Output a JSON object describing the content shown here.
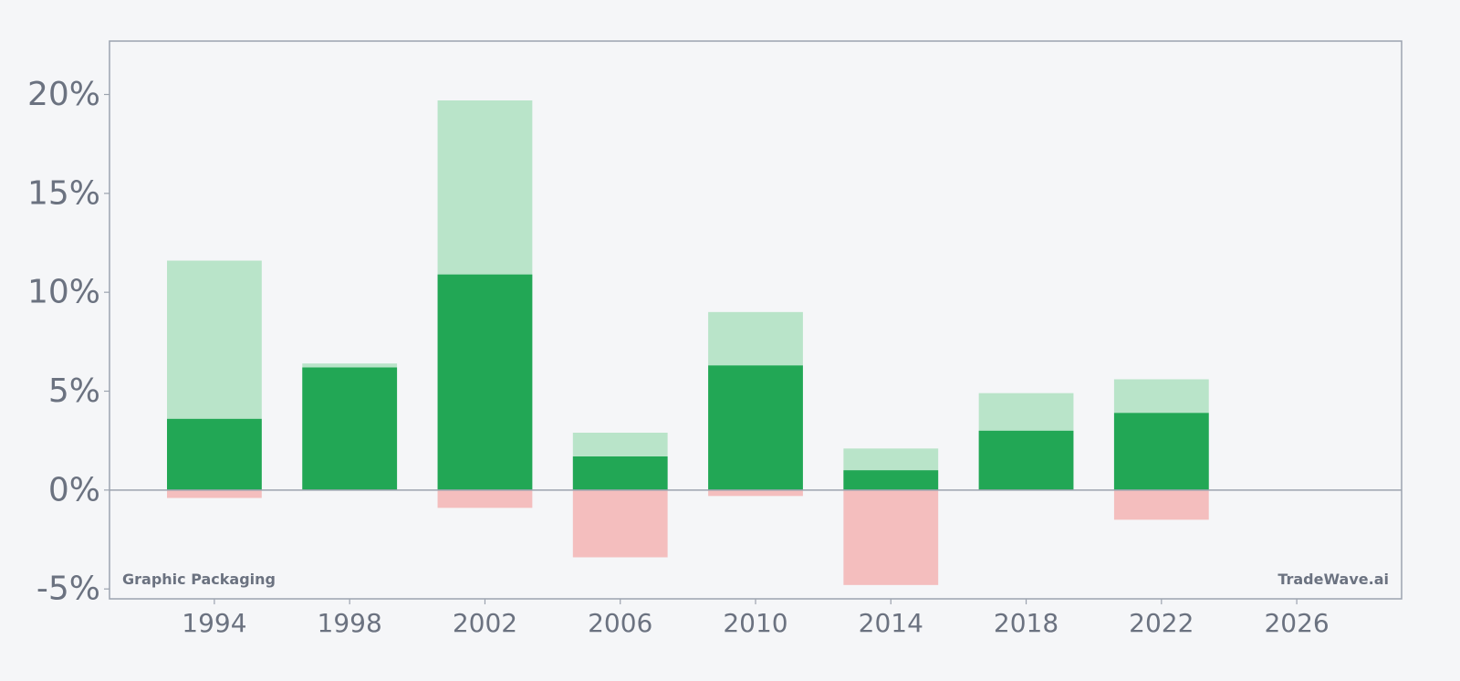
{
  "chart_data": {
    "type": "bar",
    "title": "",
    "xlabel": "",
    "ylabel": "",
    "x_ticks": [
      "1994",
      "1998",
      "2002",
      "2006",
      "2010",
      "2014",
      "2018",
      "2022",
      "2026"
    ],
    "y_ticks": [
      "-5%",
      "0%",
      "5%",
      "10%",
      "15%",
      "20%"
    ],
    "y_tick_values": [
      -5,
      0,
      5,
      10,
      15,
      20
    ],
    "xlim": [
      1990.9,
      2029.1
    ],
    "ylim": [
      -5.5,
      22.7
    ],
    "bar_width_years": 2.8,
    "grid": false,
    "legend": "none",
    "series": [
      {
        "role": "high",
        "color": "#b9e4c9",
        "x": [
          1994,
          1998,
          2002,
          2006,
          2010,
          2014,
          2018,
          2022
        ],
        "values": [
          11.6,
          6.4,
          19.7,
          2.9,
          9.0,
          2.1,
          4.9,
          5.6
        ]
      },
      {
        "role": "value",
        "color": "#22a755",
        "x": [
          1994,
          1998,
          2002,
          2006,
          2010,
          2014,
          2018,
          2022
        ],
        "values": [
          3.6,
          6.2,
          10.9,
          1.7,
          6.3,
          1.0,
          3.0,
          3.9
        ]
      },
      {
        "role": "low",
        "color": "#f4bebe",
        "x": [
          1994,
          1998,
          2002,
          2006,
          2010,
          2014,
          2018,
          2022
        ],
        "values": [
          -0.4,
          0.0,
          -0.9,
          -3.4,
          -0.3,
          -4.8,
          0.0,
          -1.5
        ]
      }
    ],
    "colors": {
      "background": "#f5f6f8",
      "frame": "#9ca3af",
      "zero_line": "#9ca3af",
      "text": "#6b7280"
    }
  },
  "watermark": {
    "left": "Graphic Packaging",
    "right": "TradeWave.ai"
  }
}
